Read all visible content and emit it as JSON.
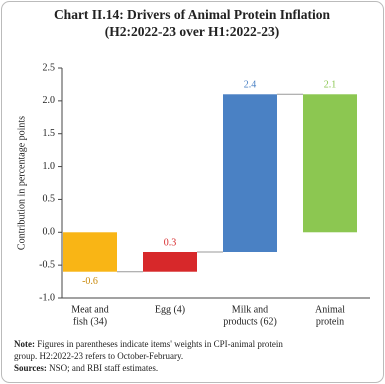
{
  "chart_data": {
    "type": "waterfall",
    "title": "Chart II.14: Drivers of Animal Protein Inflation",
    "subtitle": "(H2:2022-23 over H1:2022-23)",
    "y_label": "Contribution in percentage points",
    "categories": [
      [
        "Meat and",
        "fish (34)"
      ],
      [
        "Egg (4)"
      ],
      [
        "Milk and",
        "products (62)"
      ],
      [
        "Animal",
        "protein"
      ]
    ],
    "values": [
      -0.6,
      0.3,
      2.4,
      2.1
    ],
    "is_total": [
      false,
      false,
      false,
      true
    ],
    "colors": [
      "#f9b515",
      "#d7282a",
      "#4a81c4",
      "#8cc751"
    ],
    "label_colors": [
      "#c98a0c",
      "#d7282a",
      "#4a81c4",
      "#8cc751"
    ],
    "ylim": [
      -1.0,
      2.5
    ],
    "yticks": [
      {
        "value": -1.0,
        "label": "-1.0"
      },
      {
        "value": -0.5,
        "label": "-0.5"
      },
      {
        "value": 0,
        "label": "0.0"
      },
      {
        "value": 0.5,
        "label": "0.5"
      },
      {
        "value": 1.0,
        "label": "1.0"
      },
      {
        "value": 1.5,
        "label": "1.5"
      },
      {
        "value": 2.0,
        "label": "2.0"
      },
      {
        "value": 2.5,
        "label": "2.5"
      }
    ],
    "note_label": "Note:",
    "note_lines": [
      "Figures in parentheses indicate items' weights in CPI-animal protein",
      "group. H2:2022-23 refers to October-February."
    ],
    "sources_label": "Sources:",
    "sources": "NSO; and RBI staff estimates."
  }
}
